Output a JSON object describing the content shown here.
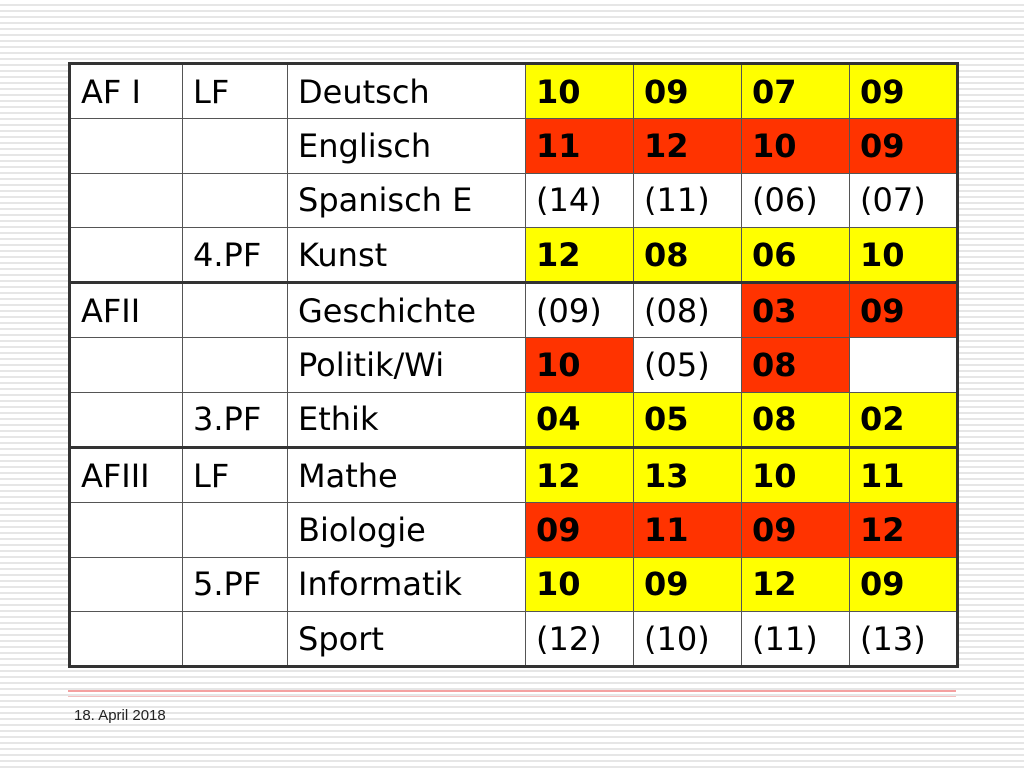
{
  "rows": [
    {
      "af": "AF I",
      "pf": "LF",
      "subject": "Deutsch",
      "grades": [
        "10",
        "09",
        "07",
        "09"
      ],
      "colors": [
        "yellow",
        "yellow",
        "yellow",
        "yellow"
      ]
    },
    {
      "af": "",
      "pf": "",
      "subject": "Englisch",
      "grades": [
        "11",
        "12",
        "10",
        "09"
      ],
      "colors": [
        "red",
        "red",
        "red",
        "red"
      ]
    },
    {
      "af": "",
      "pf": "",
      "subject": "Spanisch E",
      "grades": [
        "(14)",
        "(11)",
        "(06)",
        "(07)"
      ],
      "colors": [
        "white",
        "white",
        "white",
        "white"
      ]
    },
    {
      "af": "",
      "pf": "4.PF",
      "subject": "Kunst",
      "grades": [
        "12",
        "08",
        "06",
        "10"
      ],
      "colors": [
        "yellow",
        "yellow",
        "yellow",
        "yellow"
      ]
    },
    {
      "af": "AFII",
      "pf": "",
      "subject": "Geschichte",
      "grades": [
        "(09)",
        "(08)",
        "03",
        "09"
      ],
      "colors": [
        "white",
        "white",
        "red",
        "red"
      ]
    },
    {
      "af": "",
      "pf": "",
      "subject": "Politik/Wi",
      "grades": [
        "10",
        "(05)",
        "08",
        ""
      ],
      "colors": [
        "red",
        "white",
        "red",
        "white"
      ]
    },
    {
      "af": "",
      "pf": "3.PF",
      "subject": "Ethik",
      "grades": [
        "04",
        "05",
        "08",
        "02"
      ],
      "colors": [
        "yellow",
        "yellow",
        "yellow",
        "yellow"
      ]
    },
    {
      "af": "AFIII",
      "pf": "LF",
      "subject": "Mathe",
      "grades": [
        "12",
        "13",
        "10",
        "11"
      ],
      "colors": [
        "yellow",
        "yellow",
        "yellow",
        "yellow"
      ]
    },
    {
      "af": "",
      "pf": "",
      "subject": "Biologie",
      "grades": [
        "09",
        "11",
        "09",
        "12"
      ],
      "colors": [
        "red",
        "red",
        "red",
        "red"
      ]
    },
    {
      "af": "",
      "pf": "5.PF",
      "subject": "Informatik",
      "grades": [
        "10",
        "09",
        "12",
        "09"
      ],
      "colors": [
        "yellow",
        "yellow",
        "yellow",
        "yellow"
      ]
    },
    {
      "af": "",
      "pf": "",
      "subject": "Sport",
      "grades": [
        "(12)",
        "(10)",
        "(11)",
        "(13)"
      ],
      "colors": [
        "white",
        "white",
        "white",
        "white"
      ]
    }
  ],
  "palette": {
    "yellow": "#ffff00",
    "red": "#ff3300",
    "white": "#ffffff"
  },
  "footer": {
    "date": "18. April 2018"
  }
}
